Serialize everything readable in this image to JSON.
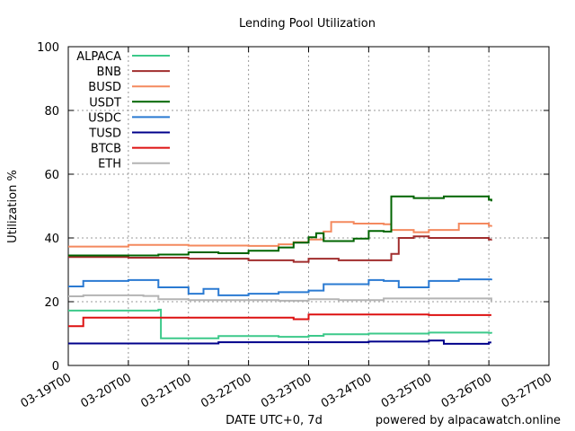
{
  "chart_data": {
    "type": "line",
    "title": "Lending Pool Utilization",
    "xlabel": "DATE UTC+0, 7d",
    "ylabel": "Utilization %",
    "footer": "powered by alpacawatch.online",
    "ylim": [
      0,
      100
    ],
    "yticks": [
      0,
      20,
      40,
      60,
      80,
      100
    ],
    "xlim": [
      "03-19T00",
      "03-27T00"
    ],
    "xticks": [
      "03-19T00",
      "03-20T00",
      "03-21T00",
      "03-22T00",
      "03-23T00",
      "03-24T00",
      "03-25T00",
      "03-26T00",
      "03-27T00"
    ],
    "grid": true,
    "legend_position": "top-left",
    "series": [
      {
        "name": "ALPACA",
        "color": "#3cc98a",
        "points": [
          [
            "03-19T00",
            17.2
          ],
          [
            "03-20T12",
            17.5
          ],
          [
            "03-20T13",
            8.5
          ],
          [
            "03-21T12",
            9.2
          ],
          [
            "03-22T12",
            9.0
          ],
          [
            "03-23T00",
            9.3
          ],
          [
            "03-23T06",
            9.8
          ],
          [
            "03-24T00",
            10.0
          ],
          [
            "03-25T00",
            10.3
          ],
          [
            "03-26T00",
            10.2
          ],
          [
            "03-26T01",
            10.0
          ]
        ]
      },
      {
        "name": "BNB",
        "color": "#a12d2d",
        "points": [
          [
            "03-19T00",
            34.0
          ],
          [
            "03-20T00",
            33.8
          ],
          [
            "03-21T00",
            33.5
          ],
          [
            "03-22T00",
            33.0
          ],
          [
            "03-22T18",
            32.5
          ],
          [
            "03-23T00",
            33.5
          ],
          [
            "03-23T12",
            33.0
          ],
          [
            "03-24T06",
            33.0
          ],
          [
            "03-24T09",
            35.0
          ],
          [
            "03-24T12",
            40.0
          ],
          [
            "03-24T18",
            40.5
          ],
          [
            "03-25T00",
            40.0
          ],
          [
            "03-26T00",
            39.5
          ],
          [
            "03-26T01",
            39.6
          ]
        ]
      },
      {
        "name": "BUSD",
        "color": "#f4895e",
        "points": [
          [
            "03-19T00",
            37.3
          ],
          [
            "03-20T00",
            37.8
          ],
          [
            "03-21T00",
            37.6
          ],
          [
            "03-22T00",
            37.5
          ],
          [
            "03-22T12",
            38.0
          ],
          [
            "03-22T18",
            38.7
          ],
          [
            "03-23T00",
            39.5
          ],
          [
            "03-23T06",
            42.0
          ],
          [
            "03-23T09",
            45.0
          ],
          [
            "03-23T18",
            44.5
          ],
          [
            "03-24T06",
            44.3
          ],
          [
            "03-24T09",
            42.5
          ],
          [
            "03-24T18",
            41.8
          ],
          [
            "03-25T00",
            42.5
          ],
          [
            "03-25T12",
            44.5
          ],
          [
            "03-26T00",
            43.8
          ],
          [
            "03-26T01",
            44.0
          ]
        ]
      },
      {
        "name": "USDT",
        "color": "#006400",
        "points": [
          [
            "03-19T00",
            34.5
          ],
          [
            "03-20T12",
            34.8
          ],
          [
            "03-21T00",
            35.5
          ],
          [
            "03-21T12",
            35.2
          ],
          [
            "03-22T00",
            36.0
          ],
          [
            "03-22T12",
            37.0
          ],
          [
            "03-22T18",
            38.5
          ],
          [
            "03-23T00",
            40.2
          ],
          [
            "03-23T03",
            41.5
          ],
          [
            "03-23T06",
            39.0
          ],
          [
            "03-23T18",
            39.8
          ],
          [
            "03-24T00",
            42.2
          ],
          [
            "03-24T06",
            42.0
          ],
          [
            "03-24T09",
            53.0
          ],
          [
            "03-24T18",
            52.5
          ],
          [
            "03-25T06",
            53.0
          ],
          [
            "03-26T00",
            52.0
          ],
          [
            "03-26T01",
            51.5
          ]
        ]
      },
      {
        "name": "USDC",
        "color": "#2a7ad2",
        "points": [
          [
            "03-19T00",
            24.8
          ],
          [
            "03-19T06",
            26.5
          ],
          [
            "03-20T00",
            26.8
          ],
          [
            "03-20T12",
            24.5
          ],
          [
            "03-21T00",
            22.5
          ],
          [
            "03-21T06",
            24.0
          ],
          [
            "03-21T12",
            22.0
          ],
          [
            "03-22T00",
            22.5
          ],
          [
            "03-22T12",
            23.0
          ],
          [
            "03-23T00",
            23.5
          ],
          [
            "03-23T06",
            25.5
          ],
          [
            "03-24T00",
            26.8
          ],
          [
            "03-24T06",
            26.5
          ],
          [
            "03-24T12",
            24.5
          ],
          [
            "03-25T00",
            26.5
          ],
          [
            "03-25T12",
            27.0
          ],
          [
            "03-26T00",
            27.0
          ],
          [
            "03-26T01",
            27.2
          ]
        ]
      },
      {
        "name": "TUSD",
        "color": "#00008b",
        "points": [
          [
            "03-19T00",
            6.9
          ],
          [
            "03-21T12",
            7.3
          ],
          [
            "03-24T00",
            7.5
          ],
          [
            "03-25T00",
            7.8
          ],
          [
            "03-25T06",
            6.8
          ],
          [
            "03-26T00",
            7.2
          ],
          [
            "03-26T01",
            7.2
          ]
        ]
      },
      {
        "name": "BTCB",
        "color": "#dd1111",
        "points": [
          [
            "03-19T00",
            12.3
          ],
          [
            "03-19T06",
            15.0
          ],
          [
            "03-22T18",
            14.5
          ],
          [
            "03-23T00",
            16.0
          ],
          [
            "03-25T00",
            15.8
          ],
          [
            "03-26T00",
            15.8
          ],
          [
            "03-26T01",
            15.8
          ]
        ]
      },
      {
        "name": "ETH",
        "color": "#b4b4b4",
        "points": [
          [
            "03-19T00",
            21.7
          ],
          [
            "03-19T06",
            22.0
          ],
          [
            "03-20T06",
            21.8
          ],
          [
            "03-20T12",
            20.8
          ],
          [
            "03-21T00",
            20.5
          ],
          [
            "03-22T12",
            20.3
          ],
          [
            "03-23T00",
            20.8
          ],
          [
            "03-23T12",
            20.5
          ],
          [
            "03-24T00",
            20.5
          ],
          [
            "03-24T06",
            21.0
          ],
          [
            "03-25T00",
            21.0
          ],
          [
            "03-26T00",
            21.0
          ],
          [
            "03-26T01",
            20.2
          ]
        ]
      }
    ]
  }
}
